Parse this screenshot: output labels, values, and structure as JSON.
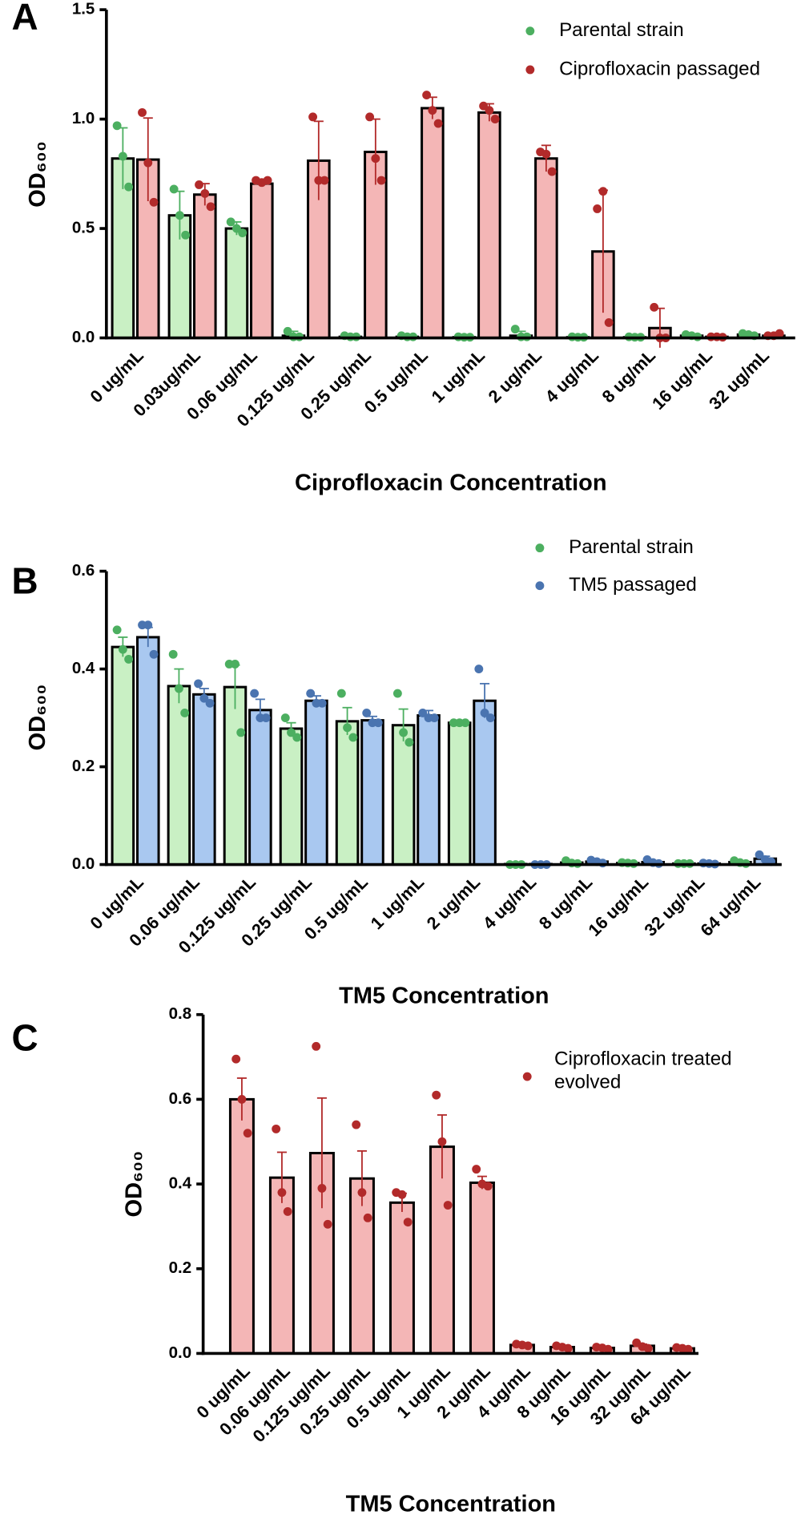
{
  "chart_data": [
    {
      "type": "bar",
      "panel": "A",
      "x_label": "Ciprofloxacin Concentration",
      "y_label": "OD₆₀₀",
      "legend": "upper right",
      "categories": [
        "0 ug/mL",
        "0.03ug/mL",
        "0.06 ug/mL",
        "0.125 ug/mL",
        "0.25 ug/mL",
        "0.5 ug/mL",
        "1 ug/mL",
        "2 ug/mL",
        "4 ug/mL",
        "8 ug/mL",
        "16 ug/mL",
        "32 ug/mL"
      ],
      "ylim": [
        0,
        1.5
      ],
      "yticks": [
        {
          "value": 0,
          "label": "0.0"
        },
        0.5,
        {
          "value": 1,
          "label": "1.0"
        },
        1.5
      ],
      "series": [
        {
          "name": "Parental strain",
          "color": "#c9f0c4",
          "point_color": "#4caf60",
          "values": [
            0.82,
            0.56,
            0.5,
            0.01,
            0.005,
            0.005,
            0.003,
            0.01,
            0.003,
            0.003,
            0.01,
            0.015
          ],
          "errors": [
            0.14,
            0.11,
            0.03,
            0.02,
            0.005,
            0.005,
            0.003,
            0.02,
            0.003,
            0.003,
            0.005,
            0.005
          ],
          "points": [
            [
              0.97,
              0.83,
              0.69
            ],
            [
              0.68,
              0.56,
              0.47
            ],
            [
              0.53,
              0.5,
              0.48
            ],
            [
              0.03,
              0.005,
              0.005
            ],
            [
              0.01,
              0.005,
              0.005
            ],
            [
              0.01,
              0.005,
              0.005
            ],
            [
              0.005,
              0.003,
              0.003
            ],
            [
              0.04,
              0.005,
              0.005
            ],
            [
              0.005,
              0.003,
              0.003
            ],
            [
              0.005,
              0.003,
              0.003
            ],
            [
              0.015,
              0.01,
              0.005
            ],
            [
              0.02,
              0.015,
              0.01
            ]
          ]
        },
        {
          "name": "Ciprofloxacin passaged",
          "color": "#f4b6b6",
          "point_color": "#b22a2a",
          "values": [
            0.815,
            0.655,
            0.705,
            0.81,
            0.85,
            1.05,
            1.03,
            0.82,
            0.395,
            0.045,
            0.005,
            0.01
          ],
          "errors": [
            0.19,
            0.05,
            0.01,
            0.18,
            0.15,
            0.05,
            0.04,
            0.06,
            0.28,
            0.09,
            0.003,
            0.005
          ],
          "points": [
            [
              1.03,
              0.8,
              0.62
            ],
            [
              0.7,
              0.66,
              0.6
            ],
            [
              0.72,
              0.71,
              0.72
            ],
            [
              1.01,
              0.72,
              0.72
            ],
            [
              1.01,
              0.82,
              0.72
            ],
            [
              1.11,
              1.04,
              0.98
            ],
            [
              1.06,
              1.04,
              1.0
            ],
            [
              0.85,
              0.84,
              0.76
            ],
            [
              0.59,
              0.67,
              0.07
            ],
            [
              0.14,
              0.0,
              0.0
            ],
            [
              0.005,
              0.005,
              0.003
            ],
            [
              0.01,
              0.01,
              0.02
            ]
          ]
        }
      ]
    },
    {
      "type": "bar",
      "panel": "B",
      "x_label": "TM5 Concentration",
      "y_label": "OD₆₀₀",
      "legend": "upper right",
      "categories": [
        "0 ug/mL",
        "0.06 ug/mL",
        "0.125 ug/mL",
        "0.25 ug/mL",
        "0.5 ug/mL",
        "1 ug/mL",
        "2 ug/mL",
        "4 ug/mL",
        "8 ug/mL",
        "16 ug/mL",
        "32 ug/mL",
        "64 ug/mL"
      ],
      "ylim": [
        0,
        0.6
      ],
      "yticks": [
        {
          "value": 0,
          "label": "0.0"
        },
        0.2,
        0.4,
        0.6
      ],
      "series": [
        {
          "name": "Parental strain",
          "color": "#c9f0c4",
          "point_color": "#4caf60",
          "values": [
            0.445,
            0.365,
            0.363,
            0.278,
            0.293,
            0.285,
            0.29,
            0.001,
            0.004,
            0.003,
            0.002,
            0.005
          ],
          "errors": [
            0.02,
            0.035,
            0.045,
            0.012,
            0.028,
            0.033,
            0.005,
            0.001,
            0.002,
            0.001,
            0.001,
            0.002
          ],
          "points": [
            [
              0.48,
              0.44,
              0.42
            ],
            [
              0.43,
              0.36,
              0.31
            ],
            [
              0.41,
              0.41,
              0.27
            ],
            [
              0.3,
              0.27,
              0.26
            ],
            [
              0.35,
              0.28,
              0.26
            ],
            [
              0.35,
              0.27,
              0.25
            ],
            [
              0.29,
              0.29,
              0.29
            ],
            [
              0,
              0,
              0
            ],
            [
              0.008,
              0.003,
              0.002
            ],
            [
              0.004,
              0.003,
              0.002
            ],
            [
              0.002,
              0.002,
              0.002
            ],
            [
              0.008,
              0.004,
              0.002
            ]
          ]
        },
        {
          "name": "TM5 passaged",
          "color": "#a9c8f0",
          "point_color": "#4a74b0",
          "values": [
            0.465,
            0.348,
            0.316,
            0.335,
            0.295,
            0.305,
            0.335,
            0.001,
            0.006,
            0.005,
            0.002,
            0.012
          ],
          "errors": [
            0.02,
            0.012,
            0.022,
            0.01,
            0.008,
            0.01,
            0.035,
            0.001,
            0.002,
            0.003,
            0.001,
            0.005
          ],
          "points": [
            [
              0.49,
              0.49,
              0.43
            ],
            [
              0.37,
              0.34,
              0.33
            ],
            [
              0.35,
              0.3,
              0.3
            ],
            [
              0.35,
              0.33,
              0.33
            ],
            [
              0.31,
              0.29,
              0.29
            ],
            [
              0.31,
              0.3,
              0.3
            ],
            [
              0.4,
              0.31,
              0.3
            ],
            [
              0,
              0,
              0
            ],
            [
              0.009,
              0.006,
              0.003
            ],
            [
              0.01,
              0.004,
              0.002
            ],
            [
              0.003,
              0.002,
              0.001
            ],
            [
              0.02,
              0.01,
              0.006
            ]
          ]
        }
      ]
    },
    {
      "type": "bar",
      "panel": "C",
      "x_label": "TM5 Concentration",
      "y_label": "OD₆₀₀",
      "legend": "upper right",
      "categories": [
        "0 ug/mL",
        "0.06 ug/mL",
        "0.125 ug/mL",
        "0.25 ug/mL",
        "0.5 ug/mL",
        "1 ug/mL",
        "2 ug/mL",
        "4 ug/mL",
        "8 ug/mL",
        "16 ug/mL",
        "32 ug/mL",
        "64 ug/mL"
      ],
      "ylim": [
        0,
        0.8
      ],
      "yticks": [
        {
          "value": 0,
          "label": "0.0"
        },
        0.2,
        0.4,
        0.6,
        0.8
      ],
      "series": [
        {
          "name": "Ciprofloxacin treated evolved",
          "color": "#f4b6b6",
          "point_color": "#b22a2a",
          "values": [
            0.6,
            0.415,
            0.473,
            0.413,
            0.356,
            0.488,
            0.403,
            0.02,
            0.015,
            0.013,
            0.018,
            0.012
          ],
          "errors": [
            0.05,
            0.06,
            0.13,
            0.065,
            0.022,
            0.075,
            0.015,
            0.003,
            0.002,
            0.002,
            0.004,
            0.001
          ],
          "points": [
            [
              0.695,
              0.6,
              0.52
            ],
            [
              0.53,
              0.38,
              0.335
            ],
            [
              0.725,
              0.39,
              0.305
            ],
            [
              0.54,
              0.38,
              0.32
            ],
            [
              0.38,
              0.375,
              0.31
            ],
            [
              0.61,
              0.5,
              0.35
            ],
            [
              0.435,
              0.4,
              0.395
            ],
            [
              0.022,
              0.02,
              0.018
            ],
            [
              0.018,
              0.015,
              0.012
            ],
            [
              0.015,
              0.013,
              0.01
            ],
            [
              0.025,
              0.016,
              0.012
            ],
            [
              0.014,
              0.012,
              0.01
            ]
          ]
        }
      ]
    }
  ]
}
